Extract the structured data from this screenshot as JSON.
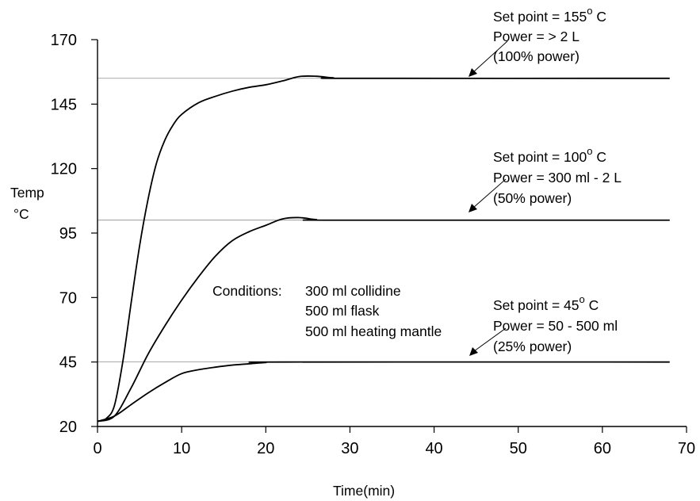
{
  "chart_data": {
    "type": "line",
    "title": "",
    "xlabel": "Time(min)",
    "ylabel_line1": "Temp",
    "ylabel_line2": "°C",
    "xlim": [
      0,
      70
    ],
    "ylim": [
      20,
      170
    ],
    "x_ticks": [
      0,
      10,
      20,
      30,
      40,
      50,
      60,
      70
    ],
    "y_ticks": [
      20,
      45,
      70,
      95,
      120,
      145,
      170
    ],
    "grid": false,
    "setpoint_lines": [
      155,
      100,
      45
    ],
    "series": [
      {
        "points": [
          [
            0,
            22
          ],
          [
            1,
            23
          ],
          [
            2,
            28
          ],
          [
            3,
            45
          ],
          [
            4,
            68
          ],
          [
            5,
            90
          ],
          [
            6,
            108
          ],
          [
            7,
            122
          ],
          [
            8,
            131
          ],
          [
            9,
            137
          ],
          [
            10,
            141
          ],
          [
            12,
            145.5
          ],
          [
            14,
            148
          ],
          [
            16,
            150
          ],
          [
            18,
            151.5
          ],
          [
            20,
            152.5
          ],
          [
            22,
            154
          ],
          [
            24,
            155.7
          ],
          [
            26,
            155.8
          ],
          [
            28,
            155.2
          ],
          [
            30,
            155
          ],
          [
            68,
            155
          ]
        ]
      },
      {
        "points": [
          [
            0,
            22
          ],
          [
            2,
            24
          ],
          [
            4,
            35
          ],
          [
            6,
            48
          ],
          [
            8,
            59
          ],
          [
            10,
            69
          ],
          [
            12,
            78
          ],
          [
            14,
            86
          ],
          [
            16,
            92
          ],
          [
            18,
            95.5
          ],
          [
            20,
            98
          ],
          [
            22,
            100.5
          ],
          [
            24,
            101
          ],
          [
            26,
            100.2
          ],
          [
            28,
            100
          ],
          [
            68,
            100
          ]
        ]
      },
      {
        "points": [
          [
            0,
            22
          ],
          [
            2,
            24
          ],
          [
            4,
            28.5
          ],
          [
            6,
            33
          ],
          [
            8,
            37
          ],
          [
            10,
            40.5
          ],
          [
            12,
            42
          ],
          [
            14,
            43
          ],
          [
            16,
            43.8
          ],
          [
            18,
            44.3
          ],
          [
            20,
            44.8
          ],
          [
            22,
            45
          ],
          [
            68,
            45
          ]
        ]
      }
    ],
    "annotations": [
      {
        "lines": [
          "Set point = 155",
          "Power = > 2 L",
          "(100% power)"
        ],
        "superscript": "o",
        "unit": " C"
      },
      {
        "lines": [
          "Set point = 100",
          "Power = 300 ml - 2 L",
          "(50% power)"
        ],
        "superscript": "o",
        "unit": " C"
      },
      {
        "lines": [
          "Set point = 45",
          "Power = 50 - 500 ml",
          "(25% power)"
        ],
        "superscript": "o",
        "unit": " C"
      }
    ],
    "conditions": {
      "label": "Conditions:",
      "items": [
        "300 ml collidine",
        "500 ml  flask",
        "500 ml heating mantle"
      ]
    }
  }
}
